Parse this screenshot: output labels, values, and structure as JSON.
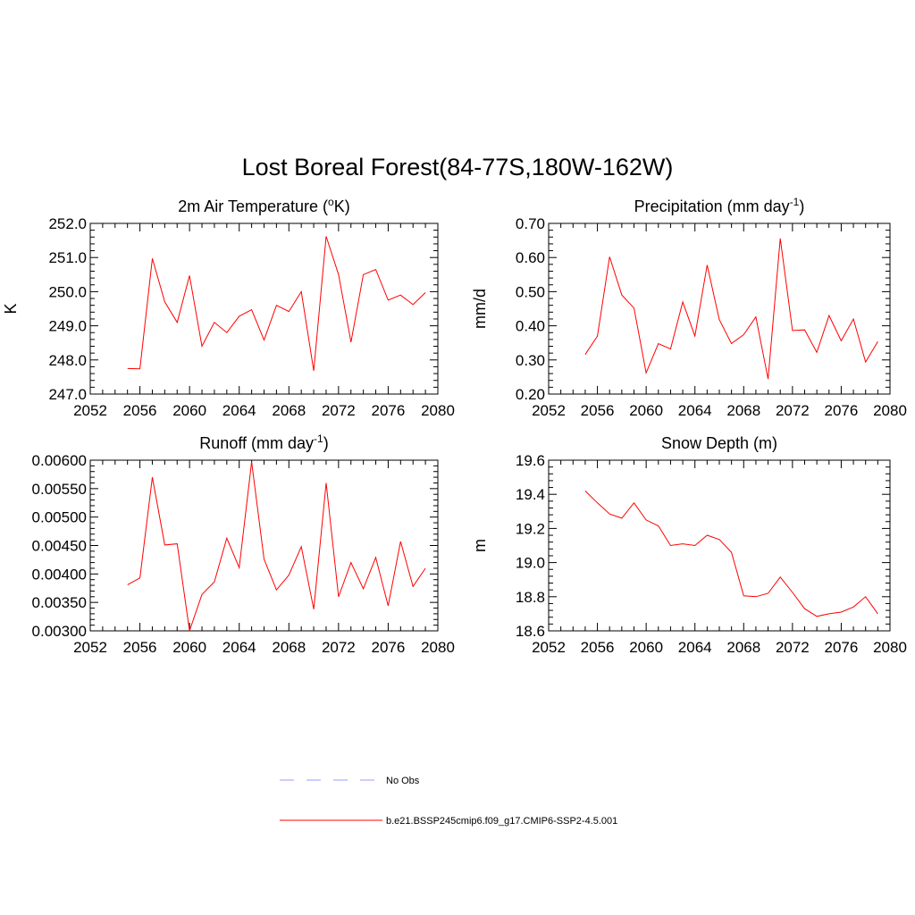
{
  "title": "Lost Boreal Forest(84-77S,180W-162W)",
  "legend": {
    "items": [
      {
        "label": "No Obs",
        "color": "#9999ff",
        "dash": true
      },
      {
        "label": "b.e21.BSSP245cmip6.f09_g17.CMIP6-SSP2-4.5.001",
        "color": "#ff0000",
        "dash": false
      }
    ]
  },
  "chart_data": [
    {
      "type": "line",
      "title": "2m Air Temperature (",
      "title_sup": "o",
      "title_tail": "K)",
      "ylabel": "K",
      "xlim": [
        2052,
        2080
      ],
      "ylim": [
        247.0,
        252.0
      ],
      "xticks": [
        "2052",
        "2056",
        "2060",
        "2064",
        "2068",
        "2072",
        "2076",
        "2080"
      ],
      "yticks": [
        "247.0",
        "248.0",
        "249.0",
        "250.0",
        "251.0",
        "252.0"
      ],
      "ytick_values": [
        247.0,
        248.0,
        249.0,
        250.0,
        251.0,
        252.0
      ],
      "x": [
        2055,
        2056,
        2057,
        2058,
        2059,
        2060,
        2061,
        2062,
        2063,
        2064,
        2065,
        2066,
        2067,
        2068,
        2069,
        2070,
        2071,
        2072,
        2073,
        2074,
        2075,
        2076,
        2077,
        2078,
        2079
      ],
      "series": [
        {
          "name": "b.e21.BSSP245cmip6.f09_g17.CMIP6-SSP2-4.5.001",
          "color": "#ff0000",
          "values": [
            247.75,
            247.74,
            250.97,
            249.7,
            249.1,
            250.47,
            248.4,
            249.1,
            248.8,
            249.28,
            249.47,
            248.58,
            249.6,
            249.42,
            250.0,
            247.68,
            251.62,
            250.5,
            248.52,
            250.5,
            250.65,
            249.75,
            249.9,
            249.62,
            249.97
          ]
        }
      ]
    },
    {
      "type": "line",
      "title": "Precipitation (mm day",
      "title_sup": "-1",
      "title_tail": ")",
      "ylabel": "mm/d",
      "xlim": [
        2052,
        2080
      ],
      "ylim": [
        0.2,
        0.7
      ],
      "xticks": [
        "2052",
        "2056",
        "2060",
        "2064",
        "2068",
        "2072",
        "2076",
        "2080"
      ],
      "yticks": [
        "0.20",
        "0.30",
        "0.40",
        "0.50",
        "0.60",
        "0.70"
      ],
      "ytick_values": [
        0.2,
        0.3,
        0.4,
        0.5,
        0.6,
        0.7
      ],
      "x": [
        2055,
        2056,
        2057,
        2058,
        2059,
        2060,
        2061,
        2062,
        2063,
        2064,
        2065,
        2066,
        2067,
        2068,
        2069,
        2070,
        2071,
        2072,
        2073,
        2074,
        2075,
        2076,
        2077,
        2078,
        2079
      ],
      "series": [
        {
          "name": "b.e21.BSSP245cmip6.f09_g17.CMIP6-SSP2-4.5.001",
          "color": "#ff0000",
          "values": [
            0.316,
            0.37,
            0.602,
            0.49,
            0.452,
            0.262,
            0.348,
            0.332,
            0.47,
            0.37,
            0.578,
            0.418,
            0.348,
            0.374,
            0.426,
            0.244,
            0.656,
            0.386,
            0.388,
            0.322,
            0.43,
            0.356,
            0.42,
            0.294,
            0.354
          ]
        }
      ]
    },
    {
      "type": "line",
      "title": "Runoff (mm day",
      "title_sup": "-1",
      "title_tail": ")",
      "ylabel": "",
      "xlim": [
        2052,
        2080
      ],
      "ylim": [
        0.003,
        0.006
      ],
      "xticks": [
        "2052",
        "2056",
        "2060",
        "2064",
        "2068",
        "2072",
        "2076",
        "2080"
      ],
      "yticks": [
        "0.00300",
        "0.00350",
        "0.00400",
        "0.00450",
        "0.00500",
        "0.00550",
        "0.00600"
      ],
      "ytick_values": [
        0.003,
        0.0035,
        0.004,
        0.0045,
        0.005,
        0.0055,
        0.006
      ],
      "x": [
        2055,
        2056,
        2057,
        2058,
        2059,
        2060,
        2061,
        2062,
        2063,
        2064,
        2065,
        2066,
        2067,
        2068,
        2069,
        2070,
        2071,
        2072,
        2073,
        2074,
        2075,
        2076,
        2077,
        2078,
        2079
      ],
      "series": [
        {
          "name": "b.e21.BSSP245cmip6.f09_g17.CMIP6-SSP2-4.5.001",
          "color": "#ff0000",
          "values": [
            0.00381,
            0.00393,
            0.0057,
            0.00451,
            0.00453,
            0.003,
            0.00364,
            0.00386,
            0.00463,
            0.00411,
            0.00597,
            0.00426,
            0.00372,
            0.00398,
            0.00448,
            0.00338,
            0.0056,
            0.0036,
            0.0042,
            0.00374,
            0.00429,
            0.00344,
            0.00457,
            0.00378,
            0.0041
          ]
        }
      ]
    },
    {
      "type": "line",
      "title": "Snow Depth (m)",
      "title_sup": "",
      "title_tail": "",
      "ylabel": "m",
      "xlim": [
        2052,
        2080
      ],
      "ylim": [
        18.6,
        19.6
      ],
      "xticks": [
        "2052",
        "2056",
        "2060",
        "2064",
        "2068",
        "2072",
        "2076",
        "2080"
      ],
      "yticks": [
        "18.6",
        "18.8",
        "19.0",
        "19.2",
        "19.4",
        "19.6"
      ],
      "ytick_values": [
        18.6,
        18.8,
        19.0,
        19.2,
        19.4,
        19.6
      ],
      "x": [
        2055,
        2056,
        2057,
        2058,
        2059,
        2060,
        2061,
        2062,
        2063,
        2064,
        2065,
        2066,
        2067,
        2068,
        2069,
        2070,
        2071,
        2072,
        2073,
        2074,
        2075,
        2076,
        2077,
        2078,
        2079
      ],
      "series": [
        {
          "name": "b.e21.BSSP245cmip6.f09_g17.CMIP6-SSP2-4.5.001",
          "color": "#ff0000",
          "values": [
            19.42,
            19.35,
            19.285,
            19.26,
            19.35,
            19.25,
            19.215,
            19.1,
            19.11,
            19.1,
            19.16,
            19.135,
            19.06,
            18.805,
            18.8,
            18.82,
            18.915,
            18.825,
            18.73,
            18.685,
            18.7,
            18.71,
            18.74,
            18.8,
            18.7
          ]
        }
      ]
    }
  ]
}
